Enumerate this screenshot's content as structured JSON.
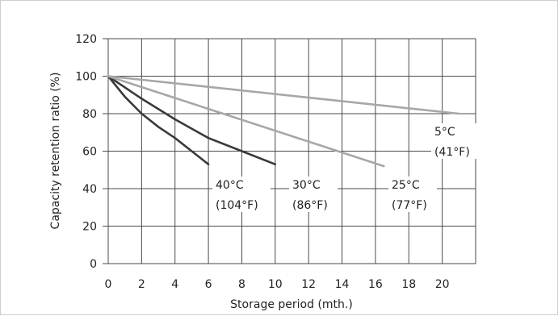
{
  "chart_data": {
    "type": "line",
    "xlabel": "Storage period (mth.)",
    "ylabel": "Capacity retention ratio (%)",
    "xlim": [
      0,
      22
    ],
    "ylim": [
      0,
      120
    ],
    "x_ticks": [
      0,
      2,
      4,
      6,
      8,
      10,
      12,
      14,
      16,
      18,
      20
    ],
    "y_ticks": [
      0,
      20,
      40,
      60,
      80,
      100,
      120
    ],
    "grid": true,
    "legend": "none",
    "series": [
      {
        "name_lines": [
          "40°C",
          "(104°F)"
        ],
        "color": "#3a3a3a",
        "x": [
          0,
          1,
          2,
          3,
          4,
          5,
          6
        ],
        "y": [
          100,
          89,
          80,
          73,
          67,
          60,
          53
        ]
      },
      {
        "name_lines": [
          "30°C",
          "(86°F)"
        ],
        "color": "#3a3a3a",
        "x": [
          0,
          1,
          2,
          4,
          6,
          8,
          10
        ],
        "y": [
          100,
          94,
          88,
          77,
          67,
          60,
          53
        ]
      },
      {
        "name_lines": [
          "25°C",
          "(77°F)"
        ],
        "color": "#a7a7a7",
        "x": [
          0,
          16.5
        ],
        "y": [
          100,
          52
        ]
      },
      {
        "name_lines": [
          "5°C",
          "(41°F)"
        ],
        "color": "#a7a7a7",
        "x": [
          0,
          21
        ],
        "y": [
          100,
          80
        ]
      }
    ]
  }
}
